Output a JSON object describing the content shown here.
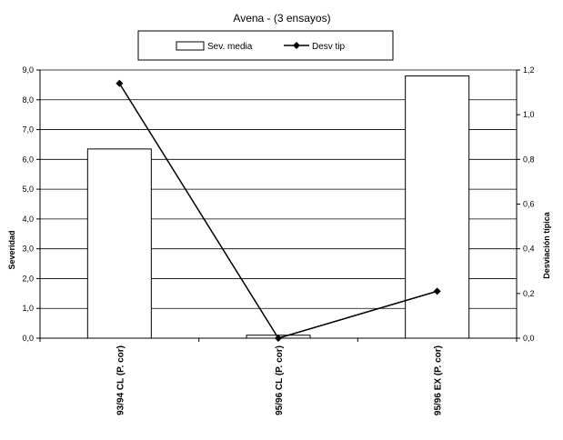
{
  "chart_data": {
    "type": "bar+line",
    "title": "Avena - (3 ensayos)",
    "categories": [
      "93/94 CL (P. cor)",
      "95/96 CL (P. cor)",
      "95/96 EX (P. cor)"
    ],
    "series": [
      {
        "name": "Sev. media",
        "type": "bar",
        "axis": "left",
        "values": [
          6.35,
          0.1,
          8.8
        ]
      },
      {
        "name": "Desv tip",
        "type": "line",
        "axis": "right",
        "values": [
          1.14,
          0.0,
          0.21
        ]
      }
    ],
    "ylabel": "Severidad",
    "y2label": "Desviación típica",
    "ylim": [
      0,
      9
    ],
    "y2lim": [
      0,
      1.2
    ],
    "yticks": [
      "0,0",
      "1,0",
      "2,0",
      "3,0",
      "4,0",
      "5,0",
      "6,0",
      "7,0",
      "8,0",
      "9,0"
    ],
    "y2ticks": [
      "0,0",
      "0,2",
      "0,4",
      "0,6",
      "0,8",
      "1,0",
      "1,2"
    ],
    "grid": true,
    "legend": "top"
  }
}
